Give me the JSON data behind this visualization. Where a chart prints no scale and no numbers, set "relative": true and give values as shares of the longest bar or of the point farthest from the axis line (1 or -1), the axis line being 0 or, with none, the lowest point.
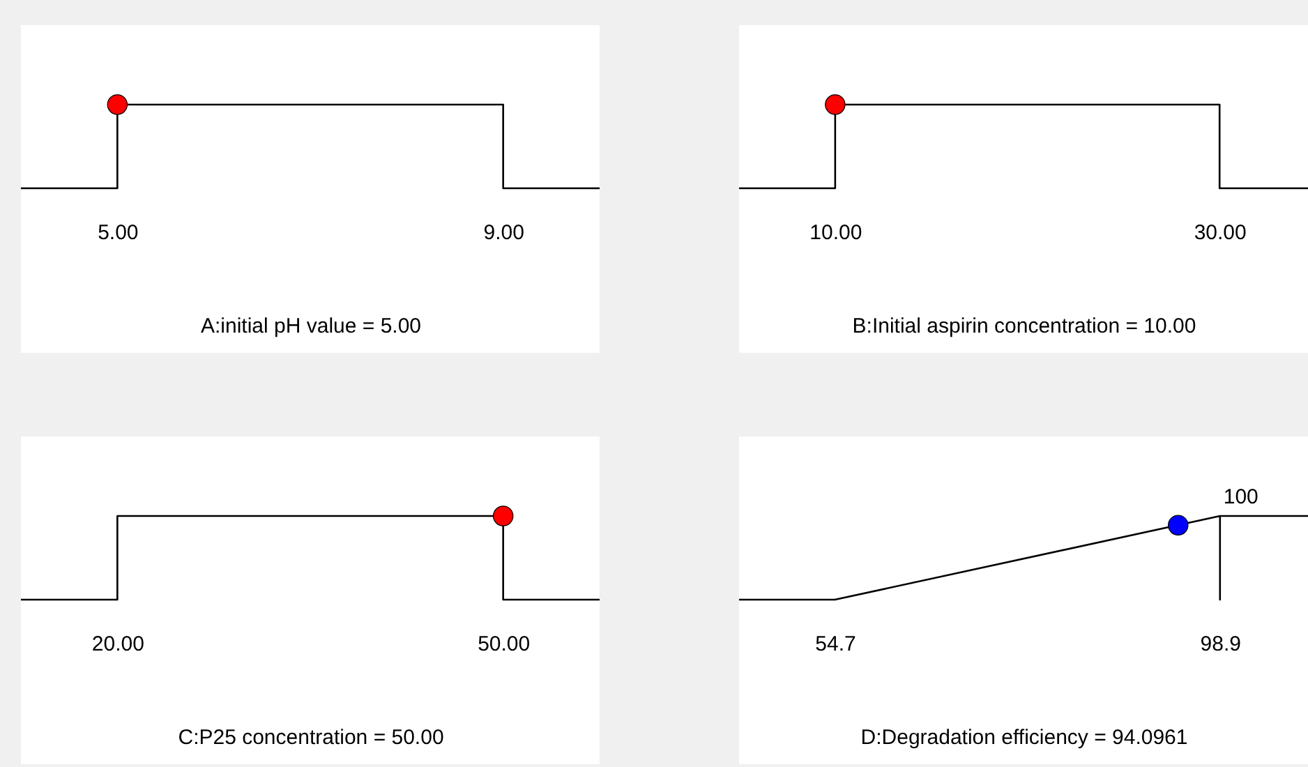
{
  "chart_data": [
    {
      "type": "line",
      "xlabel": "A:initial pH value = 5.00",
      "xlim": [
        4,
        10
      ],
      "xticks": [
        {
          "value": 5,
          "label": "5.00"
        },
        {
          "value": 9,
          "label": "9.00"
        }
      ],
      "relative": true,
      "tick_labels": "x",
      "series": [
        {
          "color": "#000000",
          "x": [
            4,
            5,
            5,
            9,
            9,
            10
          ],
          "values": [
            0,
            0,
            1,
            1,
            0,
            0
          ]
        },
        {
          "type": "scatter",
          "marker": "circle",
          "color": "#ff0000",
          "x": [
            5
          ],
          "values": [
            1
          ]
        }
      ]
    },
    {
      "type": "line",
      "xlabel": "B:Initial aspirin concentration = 10.00",
      "xlim": [
        5,
        34.6
      ],
      "xticks": [
        {
          "value": 10,
          "label": "10.00"
        },
        {
          "value": 30,
          "label": "30.00"
        }
      ],
      "relative": true,
      "tick_labels": "x",
      "series": [
        {
          "color": "#000000",
          "x": [
            5,
            10,
            10,
            30,
            30,
            34.6
          ],
          "values": [
            0,
            0,
            1,
            1,
            0,
            0
          ]
        },
        {
          "type": "scatter",
          "marker": "circle",
          "color": "#ff0000",
          "x": [
            10
          ],
          "values": [
            1
          ]
        }
      ]
    },
    {
      "type": "line",
      "xlabel": "C:P25 concentration = 50.00",
      "xlim": [
        12.5,
        57.5
      ],
      "xticks": [
        {
          "value": 20,
          "label": "20.00"
        },
        {
          "value": 50,
          "label": "50.00"
        }
      ],
      "relative": true,
      "tick_labels": "x",
      "series": [
        {
          "color": "#000000",
          "x": [
            12.5,
            20,
            20,
            50,
            50,
            57.5
          ],
          "values": [
            0,
            0,
            1,
            1,
            0,
            0
          ]
        },
        {
          "type": "scatter",
          "marker": "circle",
          "color": "#ff0000",
          "x": [
            50
          ],
          "values": [
            1
          ]
        }
      ]
    },
    {
      "type": "line",
      "xlabel": "D:Degradation efficiency = 94.0961",
      "xlim": [
        43.7,
        109
      ],
      "xticks": [
        54.7,
        98.9
      ],
      "relative": true,
      "tick_labels": "x",
      "annotations": [
        {
          "text": "100",
          "x": 101.3,
          "y": 1
        }
      ],
      "series": [
        {
          "color": "#000000",
          "x": [
            43.7,
            54.7,
            98.9,
            98.9,
            98.9,
            109
          ],
          "values": [
            0,
            0,
            1,
            0,
            1,
            1
          ]
        },
        {
          "type": "scatter",
          "marker": "circle",
          "color": "#0000ff",
          "x": [
            94.0961
          ],
          "values": [
            0.89
          ]
        }
      ]
    }
  ]
}
